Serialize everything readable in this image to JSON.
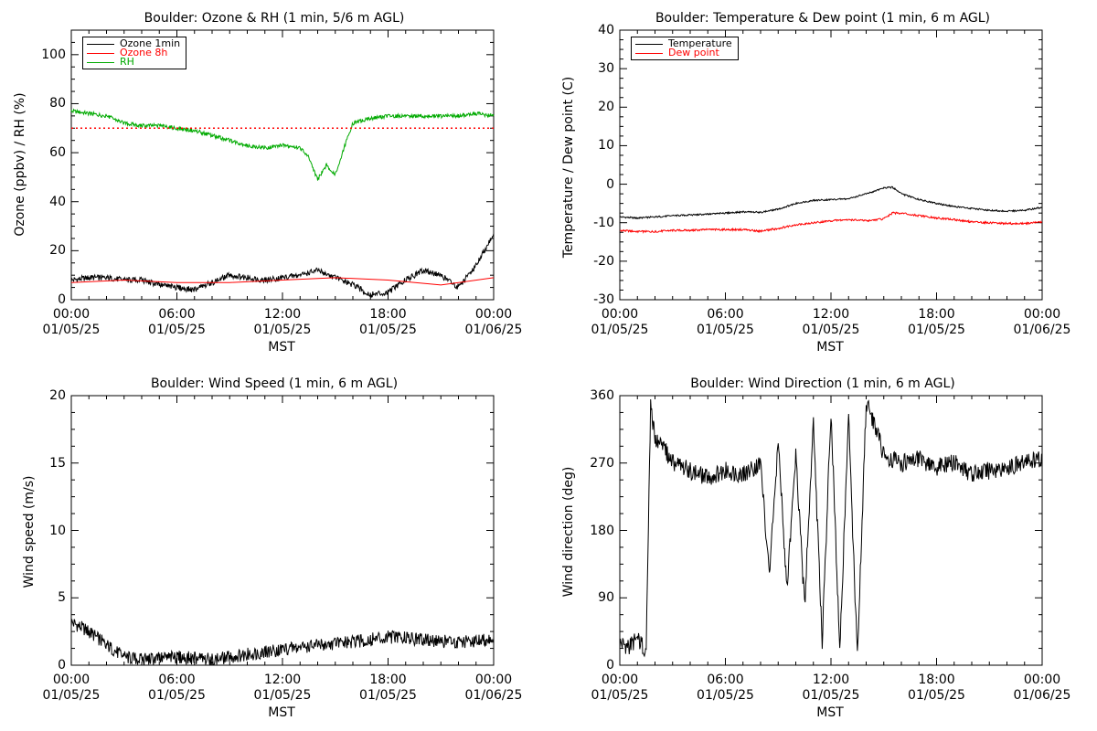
{
  "chart_data": [
    {
      "id": "ozone-rh",
      "type": "line",
      "title": "Boulder: Ozone & RH (1 min, 5/6 m AGL)",
      "xlabel": "MST",
      "ylabel": "Ozone (ppbv) / RH (%)",
      "xlim": [
        "01/05/25 00:00",
        "01/06/25 00:00"
      ],
      "ylim": [
        0,
        110
      ],
      "yticks": [
        0,
        20,
        40,
        60,
        80,
        100
      ],
      "xticks": [
        "00:00\n01/05/25",
        "06:00\n01/05/25",
        "12:00\n01/05/25",
        "18:00\n01/05/25",
        "00:00\n01/06/25"
      ],
      "legend": "top-left",
      "series": [
        {
          "name": "Ozone 1min",
          "color": "#000000",
          "x": [
            "00:00",
            "01:00",
            "02:00",
            "03:00",
            "04:00",
            "05:00",
            "06:00",
            "07:00",
            "08:00",
            "09:00",
            "10:00",
            "11:00",
            "12:00",
            "13:00",
            "14:00",
            "15:00",
            "16:00",
            "17:00",
            "18:00",
            "19:00",
            "20:00",
            "21:00",
            "22:00",
            "23:00",
            "24:00"
          ],
          "y": [
            8,
            9,
            9,
            8,
            8,
            6,
            5,
            4,
            7,
            10,
            9,
            8,
            9,
            10,
            12,
            9,
            6,
            2,
            3,
            8,
            12,
            10,
            5,
            14,
            27
          ]
        },
        {
          "name": "Ozone 8h",
          "color": "#ff0000",
          "x": [
            "00:00",
            "03:00",
            "06:00",
            "09:00",
            "12:00",
            "15:00",
            "18:00",
            "21:00",
            "24:00"
          ],
          "y": [
            7,
            8,
            7,
            7,
            8,
            9,
            8,
            6,
            9
          ]
        },
        {
          "name": "RH",
          "color": "#00aa00",
          "x": [
            "00:00",
            "01:00",
            "02:00",
            "03:00",
            "04:00",
            "05:00",
            "06:00",
            "07:00",
            "08:00",
            "09:00",
            "10:00",
            "11:00",
            "12:00",
            "13:00",
            "13:30",
            "14:00",
            "14:30",
            "15:00",
            "15:30",
            "16:00",
            "17:00",
            "18:00",
            "19:00",
            "20:00",
            "21:00",
            "22:00",
            "23:00",
            "24:00"
          ],
          "y": [
            77,
            76,
            75,
            72,
            71,
            71,
            70,
            69,
            67,
            65,
            63,
            62,
            63,
            62,
            58,
            49,
            55,
            51,
            62,
            72,
            74,
            75,
            75,
            75,
            75,
            75,
            76,
            75
          ]
        },
        {
          "name": "",
          "color": "#ff0000",
          "style": "dotted",
          "x": [
            "00:00",
            "24:00"
          ],
          "y": [
            70,
            70
          ]
        }
      ]
    },
    {
      "id": "temp-dew",
      "type": "line",
      "title": "Boulder: Temperature & Dew point (1 min, 6 m AGL)",
      "xlabel": "MST",
      "ylabel": "Temperature / Dew point (C)",
      "xlim": [
        "01/05/25 00:00",
        "01/06/25 00:00"
      ],
      "ylim": [
        -30,
        40
      ],
      "yticks": [
        -30,
        -20,
        -10,
        0,
        10,
        20,
        30,
        40
      ],
      "xticks": [
        "00:00\n01/05/25",
        "06:00\n01/05/25",
        "12:00\n01/05/25",
        "18:00\n01/05/25",
        "00:00\n01/06/25"
      ],
      "legend": "top-left",
      "series": [
        {
          "name": "Temperature",
          "color": "#000000",
          "x": [
            "00:00",
            "01:00",
            "02:00",
            "03:00",
            "04:00",
            "05:00",
            "06:00",
            "07:00",
            "08:00",
            "09:00",
            "10:00",
            "11:00",
            "12:00",
            "13:00",
            "14:00",
            "14:30",
            "15:00",
            "15:30",
            "16:00",
            "17:00",
            "18:00",
            "19:00",
            "20:00",
            "21:00",
            "22:00",
            "23:00",
            "24:00"
          ],
          "y": [
            -8.5,
            -8.8,
            -8.5,
            -8.2,
            -8,
            -7.8,
            -7.5,
            -7.2,
            -7.3,
            -6.5,
            -5,
            -4.2,
            -4,
            -3.8,
            -2.5,
            -1.8,
            -1,
            -0.8,
            -2.5,
            -4,
            -5,
            -5.8,
            -6.3,
            -6.8,
            -7,
            -6.8,
            -6
          ]
        },
        {
          "name": "Dew point",
          "color": "#ff0000",
          "x": [
            "00:00",
            "01:00",
            "02:00",
            "03:00",
            "04:00",
            "05:00",
            "06:00",
            "07:00",
            "08:00",
            "09:00",
            "10:00",
            "11:00",
            "12:00",
            "13:00",
            "14:00",
            "15:00",
            "15:30",
            "16:00",
            "17:00",
            "18:00",
            "19:00",
            "20:00",
            "21:00",
            "22:00",
            "23:00",
            "24:00"
          ],
          "y": [
            -12,
            -12.3,
            -12.3,
            -12,
            -12,
            -11.8,
            -11.8,
            -11.8,
            -12.2,
            -11.5,
            -10.5,
            -10,
            -9.5,
            -9.2,
            -9.5,
            -9,
            -7.5,
            -7.5,
            -8.2,
            -8.8,
            -9.2,
            -9.8,
            -10,
            -10.2,
            -10.2,
            -9.8
          ]
        }
      ]
    },
    {
      "id": "wind-speed",
      "type": "line",
      "title": "Boulder: Wind Speed (1 min, 6 m AGL)",
      "xlabel": "MST",
      "ylabel": "Wind speed (m/s)",
      "xlim": [
        "01/05/25 00:00",
        "01/06/25 00:00"
      ],
      "ylim": [
        0,
        20
      ],
      "yticks": [
        0,
        5,
        10,
        15,
        20
      ],
      "xticks": [
        "00:00\n01/05/25",
        "06:00\n01/05/25",
        "12:00\n01/05/25",
        "18:00\n01/05/25",
        "00:00\n01/06/25"
      ],
      "series": [
        {
          "name": "",
          "color": "#000000",
          "x": [
            "00:00",
            "01:00",
            "02:00",
            "03:00",
            "04:00",
            "05:00",
            "06:00",
            "07:00",
            "08:00",
            "09:00",
            "10:00",
            "11:00",
            "12:00",
            "13:00",
            "14:00",
            "15:00",
            "16:00",
            "17:00",
            "18:00",
            "19:00",
            "20:00",
            "21:00",
            "22:00",
            "23:00",
            "24:00"
          ],
          "y": [
            3.2,
            2.5,
            1.5,
            0.6,
            0.4,
            0.5,
            0.6,
            0.5,
            0.4,
            0.6,
            0.8,
            1.0,
            1.2,
            1.3,
            1.5,
            1.6,
            1.7,
            1.9,
            2.1,
            2.0,
            1.9,
            1.8,
            1.7,
            1.8,
            2.0
          ]
        }
      ]
    },
    {
      "id": "wind-dir",
      "type": "line",
      "title": "Boulder: Wind Direction (1 min, 6 m AGL)",
      "xlabel": "MST",
      "ylabel": "Wind direction (deg)",
      "xlim": [
        "01/05/25 00:00",
        "01/06/25 00:00"
      ],
      "ylim": [
        0,
        360
      ],
      "yticks": [
        0,
        90,
        180,
        270,
        360
      ],
      "xticks": [
        "00:00\n01/05/25",
        "06:00\n01/05/25",
        "12:00\n01/05/25",
        "18:00\n01/05/25",
        "00:00\n01/06/25"
      ],
      "series": [
        {
          "name": "",
          "color": "#000000",
          "x": [
            "00:00",
            "00:30",
            "01:00",
            "01:30",
            "01:45",
            "02:00",
            "02:30",
            "03:00",
            "04:00",
            "05:00",
            "06:00",
            "07:00",
            "08:00",
            "08:30",
            "09:00",
            "09:30",
            "10:00",
            "10:30",
            "11:00",
            "11:30",
            "12:00",
            "12:30",
            "13:00",
            "13:30",
            "14:00",
            "14:30",
            "15:00",
            "16:00",
            "17:00",
            "18:00",
            "19:00",
            "20:00",
            "21:00",
            "22:00",
            "23:00",
            "24:00"
          ],
          "y": [
            30,
            25,
            35,
            20,
            350,
            300,
            290,
            270,
            260,
            250,
            260,
            255,
            270,
            120,
            300,
            100,
            280,
            80,
            320,
            30,
            340,
            20,
            330,
            10,
            350,
            320,
            280,
            270,
            275,
            265,
            270,
            255,
            260,
            265,
            270,
            275
          ]
        }
      ]
    }
  ],
  "legend_entries": {
    "ozone": [
      "Ozone 1min",
      "Ozone 8h",
      "RH"
    ],
    "temp": [
      "Temperature",
      "Dew point"
    ]
  }
}
